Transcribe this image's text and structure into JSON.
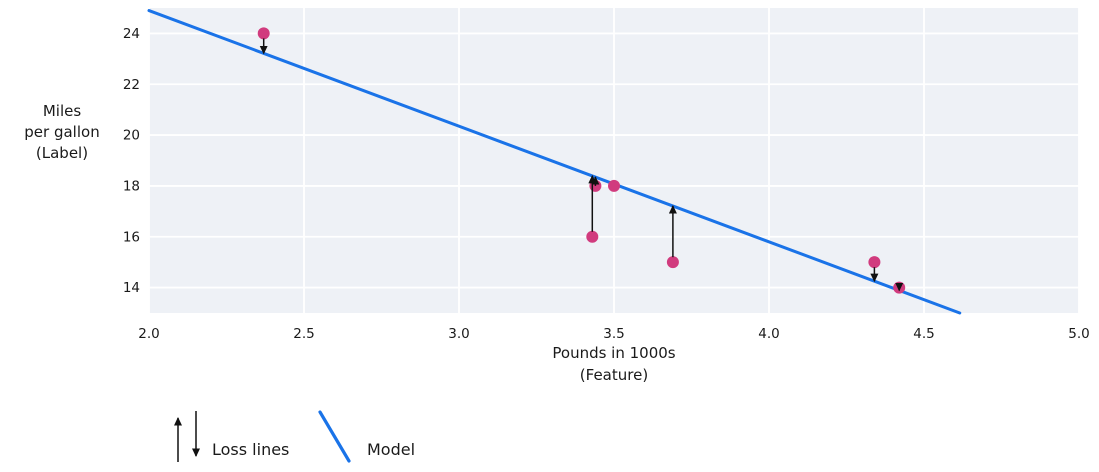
{
  "chart_data": {
    "type": "scatter",
    "title": "",
    "xlabel": "Pounds in 1000s (Feature)",
    "ylabel": "Miles per gallon (Label)",
    "xlabel_lines": [
      "Pounds in 1000s",
      "(Feature)"
    ],
    "ylabel_lines": [
      "Miles",
      "per gallon",
      "(Label)"
    ],
    "xlim": [
      2.0,
      5.0
    ],
    "ylim": [
      13,
      25
    ],
    "xticks": [
      2.0,
      2.5,
      3.0,
      3.5,
      4.0,
      4.5,
      5.0
    ],
    "xtick_labels": [
      "2.0",
      "2.5",
      "3.0",
      "3.5",
      "4.0",
      "4.5",
      "5.0"
    ],
    "yticks": [
      14,
      16,
      18,
      20,
      22,
      24
    ],
    "ytick_labels": [
      "14",
      "16",
      "18",
      "20",
      "22",
      "24"
    ],
    "grid": true,
    "points": [
      {
        "x": 2.37,
        "y": 24,
        "loss_arrow": true
      },
      {
        "x": 3.43,
        "y": 16,
        "loss_arrow": true
      },
      {
        "x": 3.44,
        "y": 18,
        "loss_arrow": true
      },
      {
        "x": 3.5,
        "y": 18,
        "loss_arrow": false
      },
      {
        "x": 3.69,
        "y": 15,
        "loss_arrow": true
      },
      {
        "x": 4.34,
        "y": 15,
        "loss_arrow": true
      },
      {
        "x": 4.42,
        "y": 14,
        "loss_arrow": true
      }
    ],
    "model_line": {
      "slope": -4.55,
      "intercept": 34
    },
    "legend": [
      {
        "label": "Loss lines",
        "symbol": "up-down-arrows"
      },
      {
        "label": "Model",
        "symbol": "blue-line-segment"
      }
    ],
    "colors": {
      "point": "#d13b7e",
      "model_line": "#1a73e8",
      "plot_bg": "#eef1f6",
      "grid": "#ffffff",
      "arrow": "#111111",
      "text": "#1a1a1a"
    }
  }
}
